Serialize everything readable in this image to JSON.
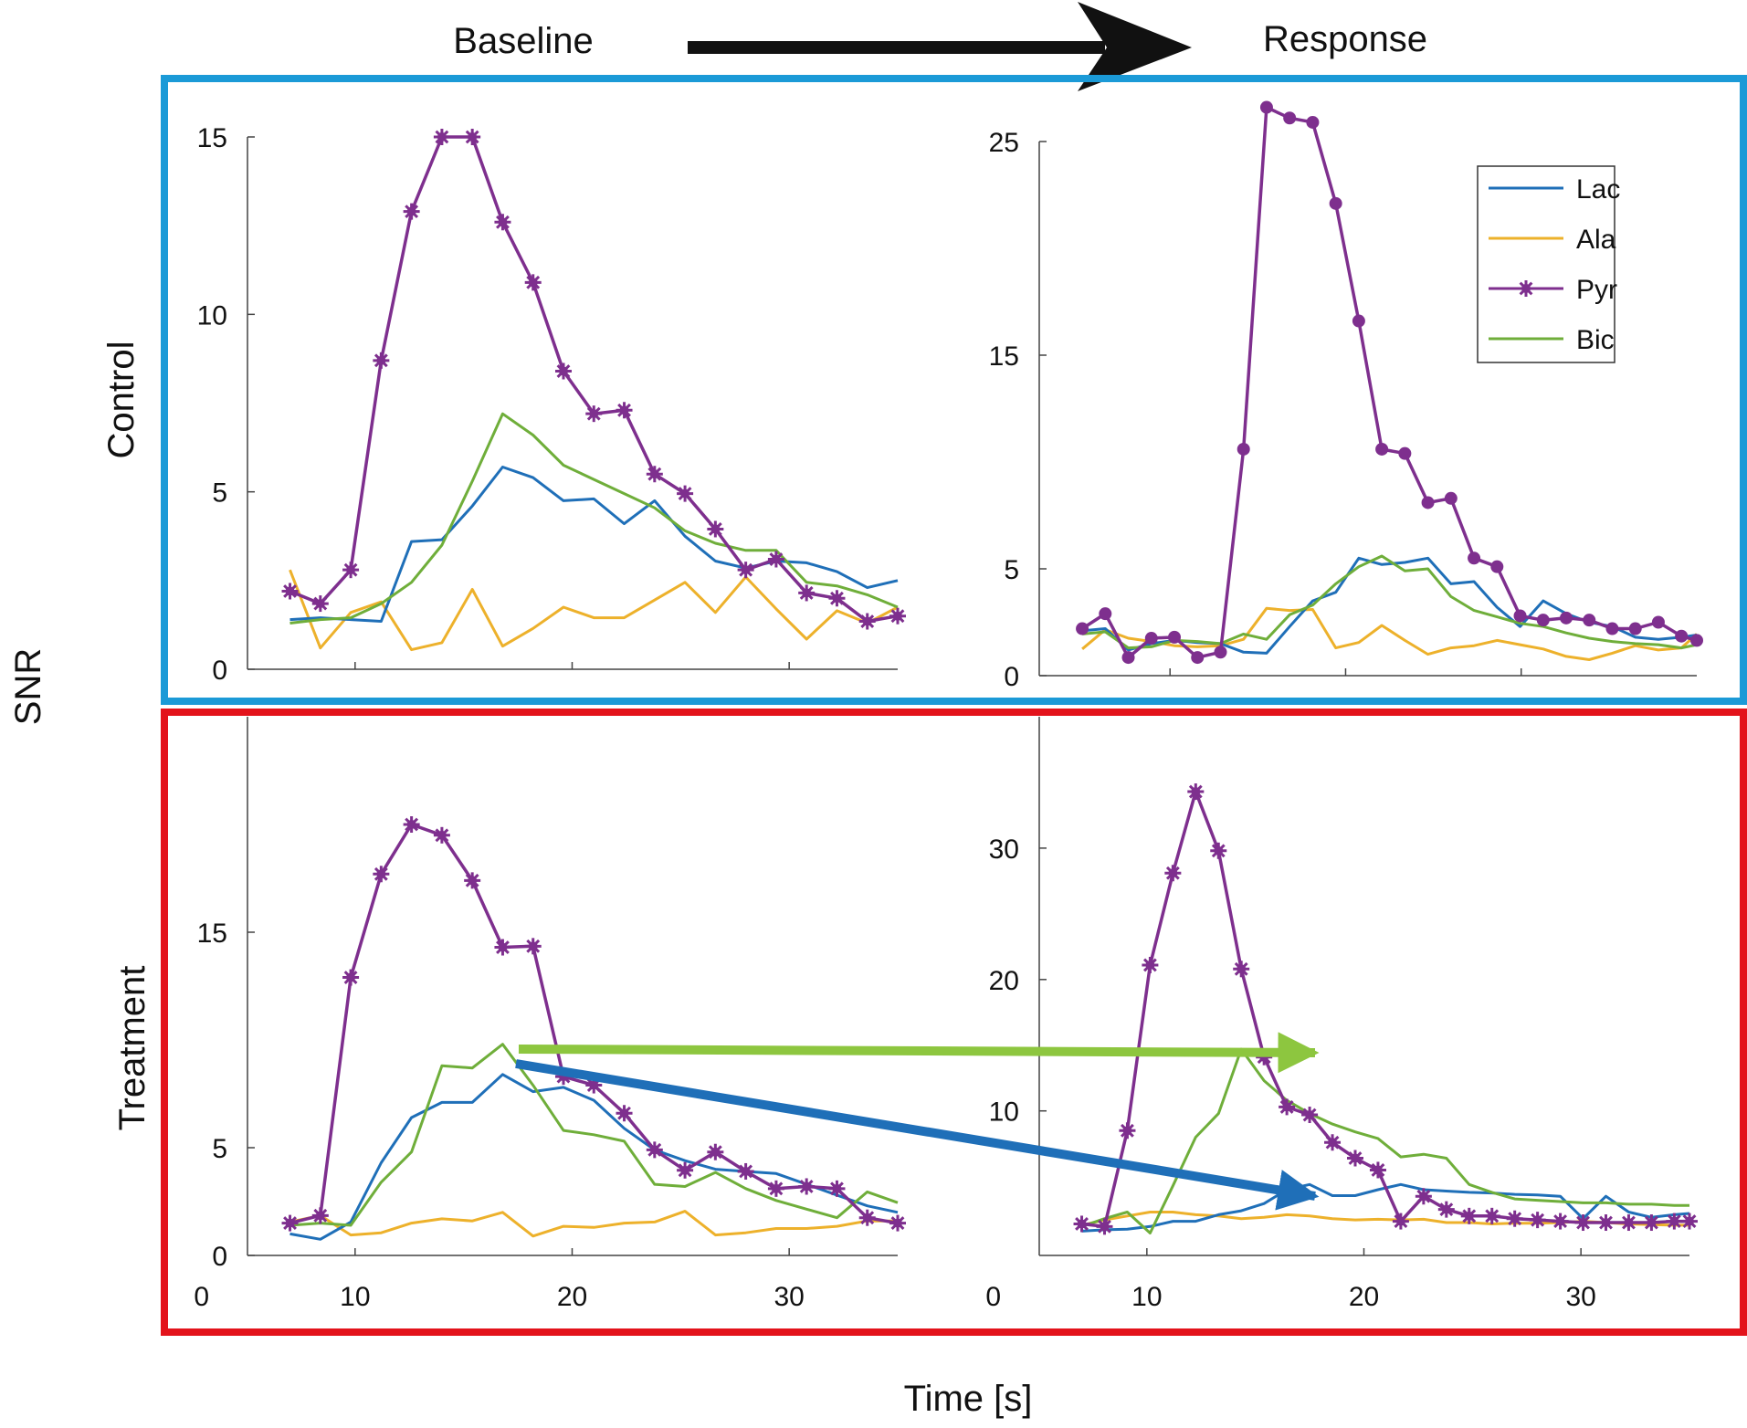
{
  "header": {
    "left": "Baseline",
    "right": "Response"
  },
  "y_axis_label": "SNR",
  "x_axis_label": "Time [s]",
  "row_labels": {
    "control": "Control",
    "treatment": "Treatment"
  },
  "colors": {
    "Lac": "#1f6fb8",
    "Ala": "#edb12b",
    "Pyr": "#7e2f8e",
    "Bic": "#6fae3a",
    "control_box": "#1b9ad7",
    "treatment_box": "#e3131b",
    "arrow_green": "#8dc63f",
    "arrow_blue": "#1f6fb8",
    "arrow_black": "#111111"
  },
  "legend": [
    "Lac",
    "Ala",
    "Pyr",
    "Bic"
  ],
  "chart_data": [
    {
      "id": "control-baseline",
      "type": "line",
      "title": "",
      "xlim": [
        5,
        35
      ],
      "ylim": [
        0,
        15
      ],
      "yticks": [
        0,
        5,
        10,
        15
      ],
      "yticklabels": [
        "0",
        "5",
        "10",
        "15"
      ],
      "xticks": [
        10,
        20,
        30
      ],
      "xticklabels": [],
      "x": [
        7,
        8.4,
        9.8,
        11.2,
        12.6,
        14,
        15.4,
        16.8,
        18.2,
        19.6,
        21,
        22.4,
        23.8,
        25.2,
        26.6,
        28,
        29.4,
        30.8,
        32.2,
        33.6,
        35
      ],
      "series": [
        {
          "name": "Lac",
          "values": [
            1.4,
            1.45,
            1.4,
            1.35,
            3.6,
            3.65,
            4.6,
            5.7,
            5.4,
            4.75,
            4.8,
            4.1,
            4.75,
            3.75,
            3.05,
            2.85,
            3.05,
            3.0,
            2.75,
            2.3,
            2.5
          ]
        },
        {
          "name": "Ala",
          "values": [
            2.8,
            0.6,
            1.6,
            1.9,
            0.55,
            0.75,
            2.25,
            0.65,
            1.15,
            1.75,
            1.45,
            1.45,
            1.95,
            2.45,
            1.6,
            2.6,
            1.7,
            0.85,
            1.65,
            1.3,
            1.75
          ]
        },
        {
          "name": "Pyr",
          "values": [
            2.2,
            1.85,
            2.8,
            8.7,
            12.9,
            15.0,
            15.0,
            12.6,
            10.9,
            8.4,
            7.2,
            7.3,
            5.5,
            4.95,
            3.95,
            2.8,
            3.1,
            2.15,
            2.0,
            1.35,
            1.5
          ]
        },
        {
          "name": "Bic",
          "values": [
            1.3,
            1.4,
            1.45,
            1.85,
            2.45,
            3.5,
            5.3,
            7.2,
            6.6,
            5.75,
            5.35,
            4.95,
            4.55,
            3.9,
            3.55,
            3.35,
            3.35,
            2.45,
            2.35,
            2.1,
            1.75
          ]
        }
      ]
    },
    {
      "id": "control-response",
      "type": "line",
      "title": "",
      "xlim": [
        5,
        35
      ],
      "ylim": [
        0,
        25
      ],
      "yticks": [
        0,
        5,
        15,
        25
      ],
      "yticklabels": [
        "0",
        "5",
        "15",
        "25"
      ],
      "xticks": [
        11,
        19,
        27
      ],
      "xticklabels": [],
      "x": [
        7,
        8.05,
        9.1,
        10.15,
        11.2,
        12.25,
        13.3,
        14.35,
        15.4,
        16.45,
        17.5,
        18.55,
        19.6,
        20.65,
        21.7,
        22.75,
        23.8,
        24.85,
        25.9,
        26.95,
        28,
        29.05,
        30.1,
        31.15,
        32.2,
        33.25,
        34.3,
        35
      ],
      "series": [
        {
          "name": "Lac",
          "values": [
            2.1,
            2.2,
            1.2,
            1.5,
            1.65,
            1.55,
            1.5,
            1.1,
            1.05,
            2.3,
            3.5,
            3.9,
            5.5,
            5.2,
            5.3,
            5.5,
            4.3,
            4.4,
            3.2,
            2.3,
            3.5,
            2.9,
            2.5,
            2.3,
            1.8,
            1.7,
            1.8,
            1.9
          ]
        },
        {
          "name": "Ala",
          "values": [
            1.25,
            2.15,
            1.75,
            1.6,
            1.4,
            1.35,
            1.4,
            1.7,
            3.15,
            3.05,
            3.1,
            1.3,
            1.55,
            2.35,
            1.65,
            1.0,
            1.3,
            1.4,
            1.65,
            1.45,
            1.25,
            0.9,
            0.75,
            1.05,
            1.4,
            1.2,
            1.3,
            1.95
          ]
        },
        {
          "name": "Pyr",
          "values": [
            2.2,
            2.9,
            0.85,
            1.75,
            1.8,
            0.85,
            1.1,
            10.6,
            26.6,
            26.1,
            25.9,
            22.1,
            16.6,
            10.6,
            10.4,
            8.1,
            8.3,
            5.5,
            5.1,
            2.8,
            2.6,
            2.7,
            2.6,
            2.2,
            2.2,
            2.5,
            1.85,
            1.65
          ]
        },
        {
          "name": "Bic",
          "values": [
            1.95,
            2.05,
            1.3,
            1.35,
            1.65,
            1.6,
            1.5,
            1.95,
            1.7,
            2.85,
            3.3,
            4.3,
            5.1,
            5.6,
            4.9,
            5.0,
            3.7,
            3.05,
            2.75,
            2.45,
            2.3,
            2.0,
            1.75,
            1.6,
            1.5,
            1.45,
            1.3,
            1.45
          ]
        }
      ]
    },
    {
      "id": "treatment-baseline",
      "type": "line",
      "title": "",
      "xlim": [
        5,
        35
      ],
      "ylim": [
        0,
        25
      ],
      "yticks": [
        0,
        5,
        15
      ],
      "yticklabels": [
        "0",
        "5",
        "15"
      ],
      "xticks": [
        10,
        20,
        30
      ],
      "xticklabels": [
        "10",
        "20",
        "30"
      ],
      "x": [
        7,
        8.4,
        9.8,
        11.2,
        12.6,
        14,
        15.4,
        16.8,
        18.2,
        19.6,
        21,
        22.4,
        23.8,
        25.2,
        26.6,
        28,
        29.4,
        30.8,
        32.2,
        33.6,
        35
      ],
      "series": [
        {
          "name": "Lac",
          "values": [
            1.0,
            0.75,
            1.55,
            4.3,
            6.4,
            7.1,
            7.1,
            8.4,
            7.6,
            7.8,
            7.2,
            5.9,
            4.9,
            4.4,
            4.0,
            3.9,
            3.8,
            3.3,
            2.8,
            2.3,
            2.0
          ]
        },
        {
          "name": "Ala",
          "values": [
            1.55,
            1.85,
            0.95,
            1.05,
            1.5,
            1.7,
            1.6,
            2.0,
            0.9,
            1.35,
            1.3,
            1.5,
            1.55,
            2.05,
            0.95,
            1.05,
            1.25,
            1.25,
            1.35,
            1.6,
            1.6
          ]
        },
        {
          "name": "Pyr",
          "values": [
            1.5,
            1.85,
            12.9,
            17.7,
            20.0,
            19.5,
            17.4,
            14.3,
            14.35,
            8.3,
            7.9,
            6.6,
            4.9,
            3.95,
            4.8,
            3.9,
            3.1,
            3.2,
            3.1,
            1.75,
            1.5
          ]
        },
        {
          "name": "Bic",
          "values": [
            1.4,
            1.5,
            1.4,
            3.4,
            4.8,
            8.8,
            8.7,
            9.8,
            7.9,
            5.8,
            5.6,
            5.3,
            3.3,
            3.2,
            3.85,
            3.1,
            2.55,
            2.15,
            1.75,
            2.95,
            2.45
          ]
        }
      ]
    },
    {
      "id": "treatment-response",
      "type": "line",
      "title": "",
      "xlim": [
        5,
        35
      ],
      "ylim": [
        -1,
        40
      ],
      "yticks": [
        10,
        20,
        30
      ],
      "yticklabels": [
        "10",
        "20",
        "30"
      ],
      "xticks": [
        10,
        20,
        30
      ],
      "xticklabels": [
        "10",
        "20",
        "30"
      ],
      "x": [
        7,
        8.05,
        9.1,
        10.15,
        11.2,
        12.25,
        13.3,
        14.35,
        15.4,
        16.45,
        17.5,
        18.55,
        19.6,
        20.65,
        21.7,
        22.75,
        23.8,
        24.85,
        25.9,
        26.95,
        28,
        29.05,
        30.1,
        31.15,
        32.2,
        33.25,
        34.3,
        35
      ],
      "series": [
        {
          "name": "Lac",
          "values": [
            0.85,
            0.95,
            1.0,
            1.2,
            1.6,
            1.6,
            2.1,
            2.4,
            2.95,
            4.0,
            4.4,
            3.55,
            3.55,
            4.0,
            4.4,
            4.0,
            3.9,
            3.8,
            3.75,
            3.65,
            3.6,
            3.5,
            1.8,
            3.5,
            2.3,
            1.9,
            2.1,
            2.2
          ]
        },
        {
          "name": "Ala",
          "values": [
            1.3,
            1.7,
            2.0,
            2.3,
            2.3,
            2.1,
            2.0,
            1.8,
            1.9,
            2.1,
            2.0,
            1.8,
            1.7,
            1.75,
            1.7,
            1.75,
            1.5,
            1.5,
            1.4,
            1.45,
            1.45,
            1.5,
            1.6,
            1.5,
            1.4,
            1.35,
            1.3,
            1.3
          ]
        },
        {
          "name": "Pyr",
          "values": [
            1.4,
            1.2,
            8.5,
            21.1,
            28.1,
            34.3,
            29.8,
            20.8,
            14.1,
            10.3,
            9.7,
            7.6,
            6.4,
            5.5,
            1.6,
            3.5,
            2.5,
            2.0,
            2.0,
            1.8,
            1.7,
            1.6,
            1.5,
            1.5,
            1.5,
            1.5,
            1.6,
            1.6
          ]
        },
        {
          "name": "Bic",
          "values": [
            1.2,
            1.8,
            2.3,
            0.7,
            4.3,
            8.0,
            9.8,
            14.7,
            12.3,
            10.8,
            9.8,
            9.0,
            8.4,
            7.9,
            6.5,
            6.7,
            6.4,
            4.4,
            3.8,
            3.3,
            3.2,
            3.1,
            3.0,
            3.0,
            2.9,
            2.9,
            2.8,
            2.8
          ]
        }
      ]
    }
  ]
}
